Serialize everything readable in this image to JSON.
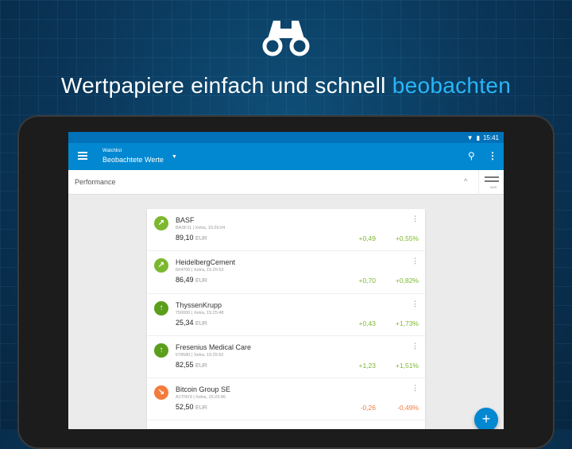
{
  "banner": {
    "headline_prefix": "Wertpapiere einfach und schnell ",
    "headline_highlight": "beobachten",
    "logo_icon": "binoculars-icon"
  },
  "status": {
    "time": "15:41"
  },
  "appbar": {
    "subtitle": "Watchlist",
    "title": "Beobachtete Werte"
  },
  "performance": {
    "label": "Performance",
    "sort_label": "AUS"
  },
  "colors": {
    "up": "#7cb82f",
    "up_strong": "#5a9e1c",
    "down": "#f47b3c",
    "accent": "#0288d1"
  },
  "items": [
    {
      "name": "BASF",
      "meta": "BASF11 | Xetra, 15:26:04",
      "price": "89,10",
      "currency": "EUR",
      "change": "+0,49",
      "percent": "+0,55%",
      "trend": "up-right"
    },
    {
      "name": "HeidelbergCement",
      "meta": "604700 | Xetra, 15:25:53",
      "price": "86,49",
      "currency": "EUR",
      "change": "+0,70",
      "percent": "+0,82%",
      "trend": "up-right"
    },
    {
      "name": "ThyssenKrupp",
      "meta": "750000 | Xetra, 15:25:48",
      "price": "25,34",
      "currency": "EUR",
      "change": "+0,43",
      "percent": "+1,73%",
      "trend": "up"
    },
    {
      "name": "Fresenius Medical Care",
      "meta": "578580 | Xetra, 15:25:52",
      "price": "82,55",
      "currency": "EUR",
      "change": "+1,23",
      "percent": "+1,51%",
      "trend": "up"
    },
    {
      "name": "Bitcoin Group SE",
      "meta": "A1TNV9 | Xetra, 15:23:46",
      "price": "52,50",
      "currency": "EUR",
      "change": "-0,26",
      "percent": "-0,49%",
      "trend": "down-right"
    }
  ]
}
